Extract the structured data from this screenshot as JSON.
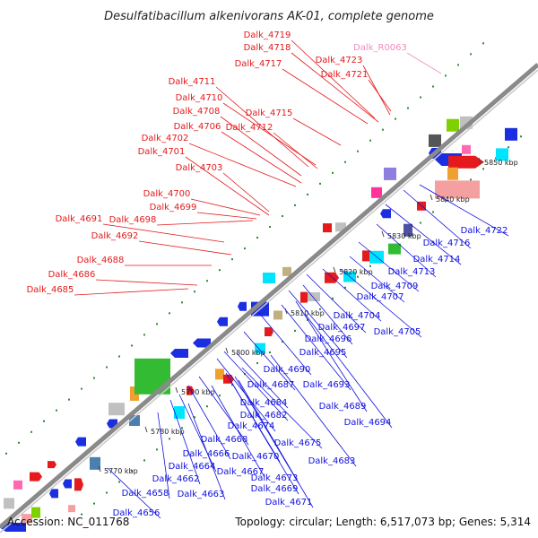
{
  "title": "Desulfatibacillum alkenivorans AK-01, complete genome",
  "footer": {
    "accession": "Accession: NC_011768",
    "topology": "Topology: circular; Length: 6,517,073 bp; Genes: 5,314"
  },
  "colors": {
    "forward_label": "#e41a1c",
    "reverse_label": "#1010e0",
    "rna_label": "#f08cc0",
    "axis": "#888888",
    "dots": "#2e8b2e"
  },
  "ticks": [
    "5770 kbp",
    "5780 kbp",
    "5790 kbp",
    "5800 kbp",
    "5810 kbp",
    "5820 kbp",
    "5830 kbp",
    "5840 kbp",
    "5850 kbp"
  ],
  "forward_labels": [
    "Dalk_4719",
    "Dalk_4718",
    "Dalk_4717",
    "Dalk_4723",
    "Dalk_4721",
    "Dalk_4711",
    "Dalk_4710",
    "Dalk_4708",
    "Dalk_4715",
    "Dalk_4706",
    "Dalk_4712",
    "Dalk_4702",
    "Dalk_4701",
    "Dalk_4703",
    "Dalk_4700",
    "Dalk_4699",
    "Dalk_4691",
    "Dalk_4698",
    "Dalk_4692",
    "Dalk_4688",
    "Dalk_4686",
    "Dalk_4685"
  ],
  "rna_labels": [
    "Dalk_R0063"
  ],
  "reverse_labels": [
    "Dalk_4722",
    "Dalk_4716",
    "Dalk_4714",
    "Dalk_4713",
    "Dalk_4709",
    "Dalk_4707",
    "Dalk_4704",
    "Dalk_4697",
    "Dalk_4705",
    "Dalk_4696",
    "Dalk_4695",
    "Dalk_4690",
    "Dalk_4687",
    "Dalk_4693",
    "Dalk_4684",
    "Dalk_4682",
    "Dalk_4689",
    "Dalk_4674",
    "Dalk_4694",
    "Dalk_4668",
    "Dalk_4675",
    "Dalk_4666",
    "Dalk_4670",
    "Dalk_4683",
    "Dalk_4664",
    "Dalk_4667",
    "Dalk_4673",
    "Dalk_4662",
    "Dalk_4669",
    "Dalk_4658",
    "Dalk_4663",
    "Dalk_4671",
    "Dalk_4656"
  ]
}
